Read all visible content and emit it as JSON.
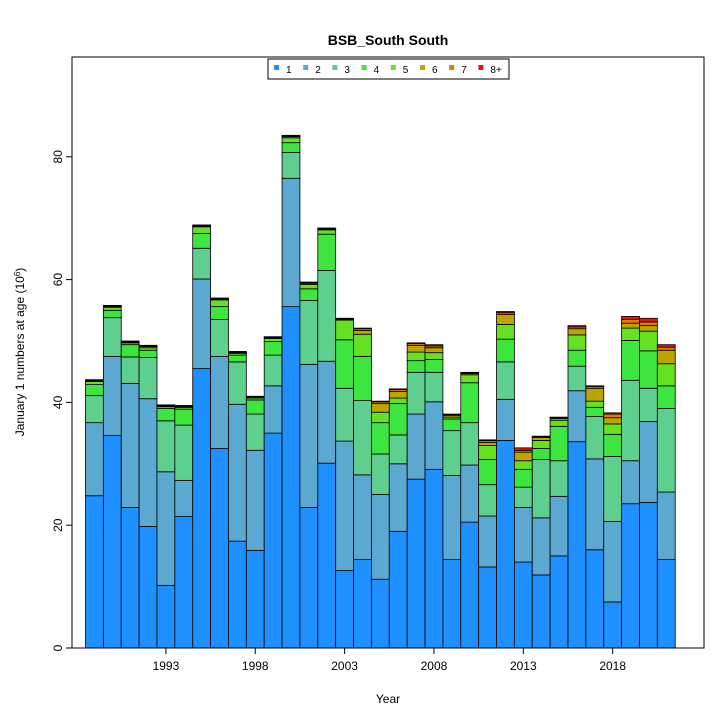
{
  "chart_data": {
    "type": "bar",
    "stacked": true,
    "title": "BSB_South South",
    "xlabel": "Year",
    "ylabel_prefix": "January 1 numbers at age (10",
    "ylabel_exponent": "6",
    "ylabel_suffix": ")",
    "ylim": [
      0,
      95
    ],
    "yticks": [
      0,
      20,
      40,
      60,
      80
    ],
    "xticks": [
      1993,
      1998,
      2003,
      2008,
      2013,
      2018
    ],
    "grid": false,
    "legend_position": "top",
    "categories": [
      1989,
      1990,
      1991,
      1992,
      1993,
      1994,
      1995,
      1996,
      1997,
      1998,
      1999,
      2000,
      2001,
      2002,
      2003,
      2004,
      2005,
      2006,
      2007,
      2008,
      2009,
      2010,
      2011,
      2012,
      2013,
      2014,
      2015,
      2016,
      2017,
      2018,
      2019,
      2020,
      2021
    ],
    "series": [
      {
        "name": "1",
        "color": "#1E90FF",
        "values": [
          24.8,
          34.6,
          22.9,
          19.8,
          10.2,
          21.4,
          45.5,
          32.5,
          17.4,
          15.9,
          35.0,
          55.6,
          22.9,
          30.1,
          12.6,
          14.4,
          11.2,
          19.0,
          27.5,
          29.1,
          14.4,
          20.5,
          13.2,
          33.8,
          14.0,
          11.9,
          15.0,
          33.6,
          16.0,
          7.5,
          23.5,
          23.7,
          14.4
        ]
      },
      {
        "name": "2",
        "color": "#5BA8D0",
        "values": [
          11.9,
          12.9,
          20.2,
          20.8,
          18.5,
          5.9,
          14.6,
          15.0,
          22.3,
          16.3,
          7.7,
          20.9,
          23.3,
          16.6,
          21.1,
          13.8,
          13.8,
          11.0,
          10.6,
          11.0,
          13.7,
          9.3,
          8.3,
          6.7,
          8.9,
          9.3,
          9.7,
          8.3,
          14.8,
          13.1,
          7.0,
          13.2,
          11.0
        ]
      },
      {
        "name": "3",
        "color": "#5FCF8F",
        "values": [
          4.4,
          6.3,
          4.3,
          6.7,
          8.3,
          9.0,
          5.0,
          6.0,
          6.9,
          5.9,
          5.0,
          4.2,
          10.4,
          14.8,
          8.6,
          12.1,
          6.6,
          4.7,
          6.8,
          4.8,
          7.3,
          6.9,
          5.1,
          6.1,
          3.3,
          9.5,
          5.8,
          4.0,
          6.9,
          10.6,
          13.1,
          5.4,
          13.6
        ]
      },
      {
        "name": "4",
        "color": "#3EE53E",
        "values": [
          1.8,
          1.2,
          2.0,
          1.2,
          2.0,
          2.6,
          2.4,
          2.1,
          1.1,
          2.3,
          2.2,
          1.6,
          1.9,
          5.9,
          7.9,
          7.2,
          5.1,
          5.1,
          1.9,
          2.1,
          1.9,
          6.5,
          4.1,
          3.7,
          2.9,
          1.8,
          5.6,
          2.6,
          1.5,
          3.6,
          6.5,
          6.1,
          3.7
        ]
      },
      {
        "name": "5",
        "color": "#66E020",
        "values": [
          0.5,
          0.5,
          0.3,
          0.4,
          0.3,
          0.3,
          1.1,
          1.1,
          0.3,
          0.3,
          0.5,
          0.8,
          0.7,
          0.7,
          3.2,
          3.6,
          1.7,
          0.9,
          1.4,
          1.1,
          0.3,
          1.3,
          2.3,
          2.4,
          1.4,
          1.3,
          1.0,
          2.5,
          1.0,
          1.7,
          2.0,
          3.2,
          3.6
        ]
      },
      {
        "name": "6",
        "color": "#BBA600",
        "values": [
          0.1,
          0.1,
          0.1,
          0.2,
          0.1,
          0.1,
          0.1,
          0.1,
          0.1,
          0.1,
          0.1,
          0.2,
          0.2,
          0.1,
          0.1,
          0.6,
          1.4,
          1.1,
          1.1,
          0.8,
          0.3,
          0.2,
          0.5,
          1.6,
          1.4,
          0.5,
          0.3,
          1.0,
          2.1,
          1.0,
          0.8,
          0.9,
          2.2
        ]
      },
      {
        "name": "7",
        "color": "#E07A00",
        "values": [
          0.1,
          0.1,
          0.1,
          0.1,
          0.1,
          0.1,
          0.1,
          0.1,
          0.1,
          0.1,
          0.1,
          0.1,
          0.1,
          0.1,
          0.1,
          0.3,
          0.3,
          0.3,
          0.3,
          0.3,
          0.1,
          0.1,
          0.3,
          0.3,
          0.3,
          0.1,
          0.1,
          0.3,
          0.3,
          0.6,
          0.6,
          0.6,
          0.5
        ]
      },
      {
        "name": "8+",
        "color": "#EE1111",
        "values": [
          0.1,
          0.1,
          0.1,
          0.1,
          0.1,
          0.1,
          0.1,
          0.1,
          0.1,
          0.1,
          0.1,
          0.1,
          0.1,
          0.1,
          0.1,
          0.1,
          0.1,
          0.1,
          0.1,
          0.2,
          0.1,
          0.1,
          0.1,
          0.2,
          0.4,
          0.1,
          0.1,
          0.2,
          0.1,
          0.2,
          0.5,
          0.6,
          0.4
        ]
      }
    ]
  }
}
